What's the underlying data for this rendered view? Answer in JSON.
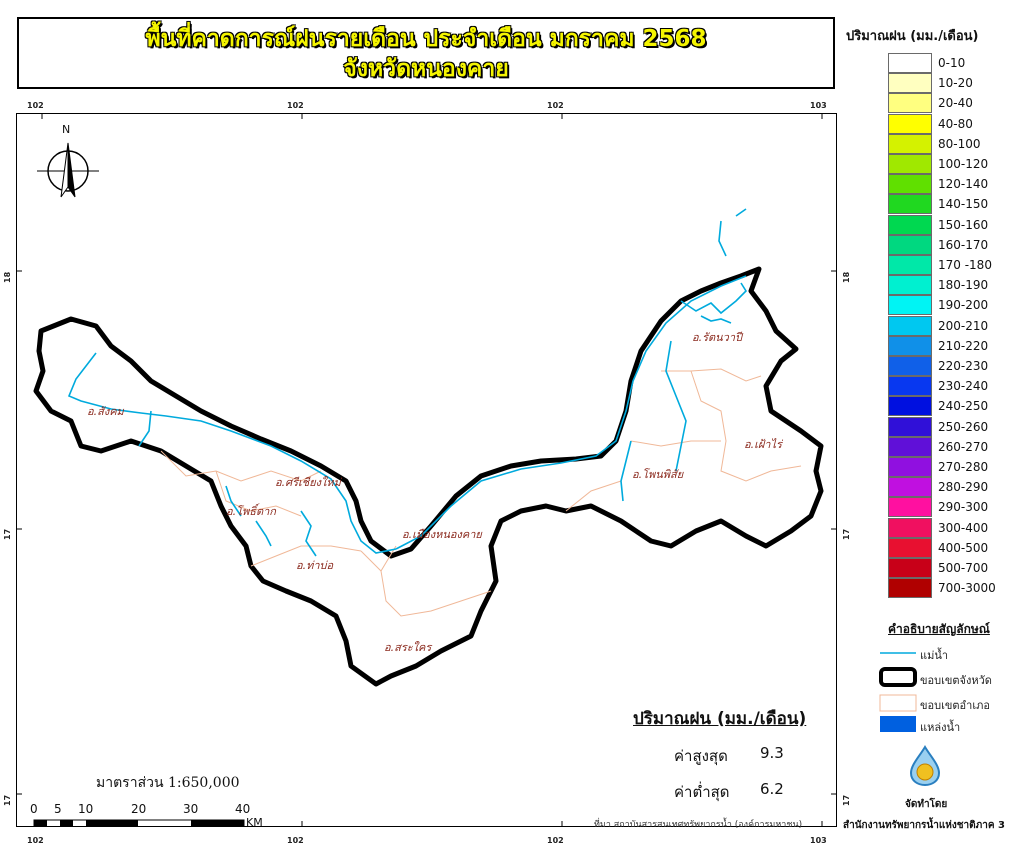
{
  "title": {
    "line1": "พื้นที่คาดการณ์ฝนรายเดือน ประจำเดือน มกราคม 2568",
    "line2": "จังหวัดหนองคาย"
  },
  "grid": {
    "top_labels": [
      "102",
      "102",
      "102",
      "103"
    ],
    "bottom_labels": [
      "102",
      "102",
      "102",
      "103"
    ],
    "left_labels": [
      "18",
      "17",
      "17"
    ],
    "right_labels": [
      "18",
      "17",
      "17"
    ]
  },
  "north_arrow": {
    "label": "N"
  },
  "districts": [
    {
      "name": "อ.สังคม"
    },
    {
      "name": "อ.ศรีเชียงใหม่"
    },
    {
      "name": "อ.โพธิ์ตาก"
    },
    {
      "name": "อ.ท่าบ่อ"
    },
    {
      "name": "อ.เมืองหนองคาย"
    },
    {
      "name": "อ.สระใคร"
    },
    {
      "name": "อ.โพนพิสัย"
    },
    {
      "name": "อ.รัตนวาปี"
    },
    {
      "name": "อ.เฝ้าไร่"
    }
  ],
  "legend": {
    "title": "ปริมาณฝน (มม./เดือน)",
    "classes": [
      {
        "label": "0-10",
        "color": "#ffffff"
      },
      {
        "label": "10-20",
        "color": "#ffffc0"
      },
      {
        "label": "20-40",
        "color": "#ffff80"
      },
      {
        "label": "40-80",
        "color": "#ffff00"
      },
      {
        "label": "80-100",
        "color": "#d4f200"
      },
      {
        "label": "100-120",
        "color": "#a0e800"
      },
      {
        "label": "120-140",
        "color": "#60e000"
      },
      {
        "label": "140-150",
        "color": "#20d820"
      },
      {
        "label": "150-160",
        "color": "#00d850"
      },
      {
        "label": "160-170",
        "color": "#00d880"
      },
      {
        "label": "170 -180",
        "color": "#00e8a8"
      },
      {
        "label": "180-190",
        "color": "#00f0d0"
      },
      {
        "label": "190-200",
        "color": "#00f4f4"
      },
      {
        "label": "200-210",
        "color": "#00c8f0"
      },
      {
        "label": "210-220",
        "color": "#1090e8"
      },
      {
        "label": "220-230",
        "color": "#1060e8"
      },
      {
        "label": "230-240",
        "color": "#0838f0"
      },
      {
        "label": "240-250",
        "color": "#0010e0"
      },
      {
        "label": "250-260",
        "color": "#3010d8"
      },
      {
        "label": "260-270",
        "color": "#6010d8"
      },
      {
        "label": "270-280",
        "color": "#9010e0"
      },
      {
        "label": "280-290",
        "color": "#c010e0"
      },
      {
        "label": "290-300",
        "color": "#ff10a0"
      },
      {
        "label": "300-400",
        "color": "#f01060"
      },
      {
        "label": "400-500",
        "color": "#e81030"
      },
      {
        "label": "500-700",
        "color": "#c80018"
      },
      {
        "label": "700-3000",
        "color": "#b00000"
      }
    ]
  },
  "symbols": {
    "title": "คำอธิบายสัญลักษณ์",
    "items": [
      {
        "label": "แม่น้ำ",
        "color": "#00aadd"
      },
      {
        "label": "ขอบเขตจังหวัด",
        "color": "#000000"
      },
      {
        "label": "ขอบเขตอำเภอ",
        "color": "#f0b898"
      },
      {
        "label": "แหล่งน้ำ",
        "color": "#0060e0"
      }
    ]
  },
  "stats": {
    "title": "ปริมาณฝน (มม./เดือน)",
    "max_label": "ค่าสูงสุด",
    "max_value": "9.3",
    "min_label": "ค่าต่ำสุด",
    "min_value": "6.2"
  },
  "scale": {
    "text": "มาตราส่วน 1:650,000",
    "ticks": [
      "0",
      "5",
      "10",
      "20",
      "30",
      "40"
    ],
    "unit": "KM"
  },
  "source": "ที่มา  สถาบันสารสนเทศทรัพยากรน้ำ (องค์การมหาชน)",
  "credits": {
    "made_by": "จัดทำโดย",
    "agency": "สำนักงานทรัพยากรน้ำแห่งชาติภาค 3"
  }
}
